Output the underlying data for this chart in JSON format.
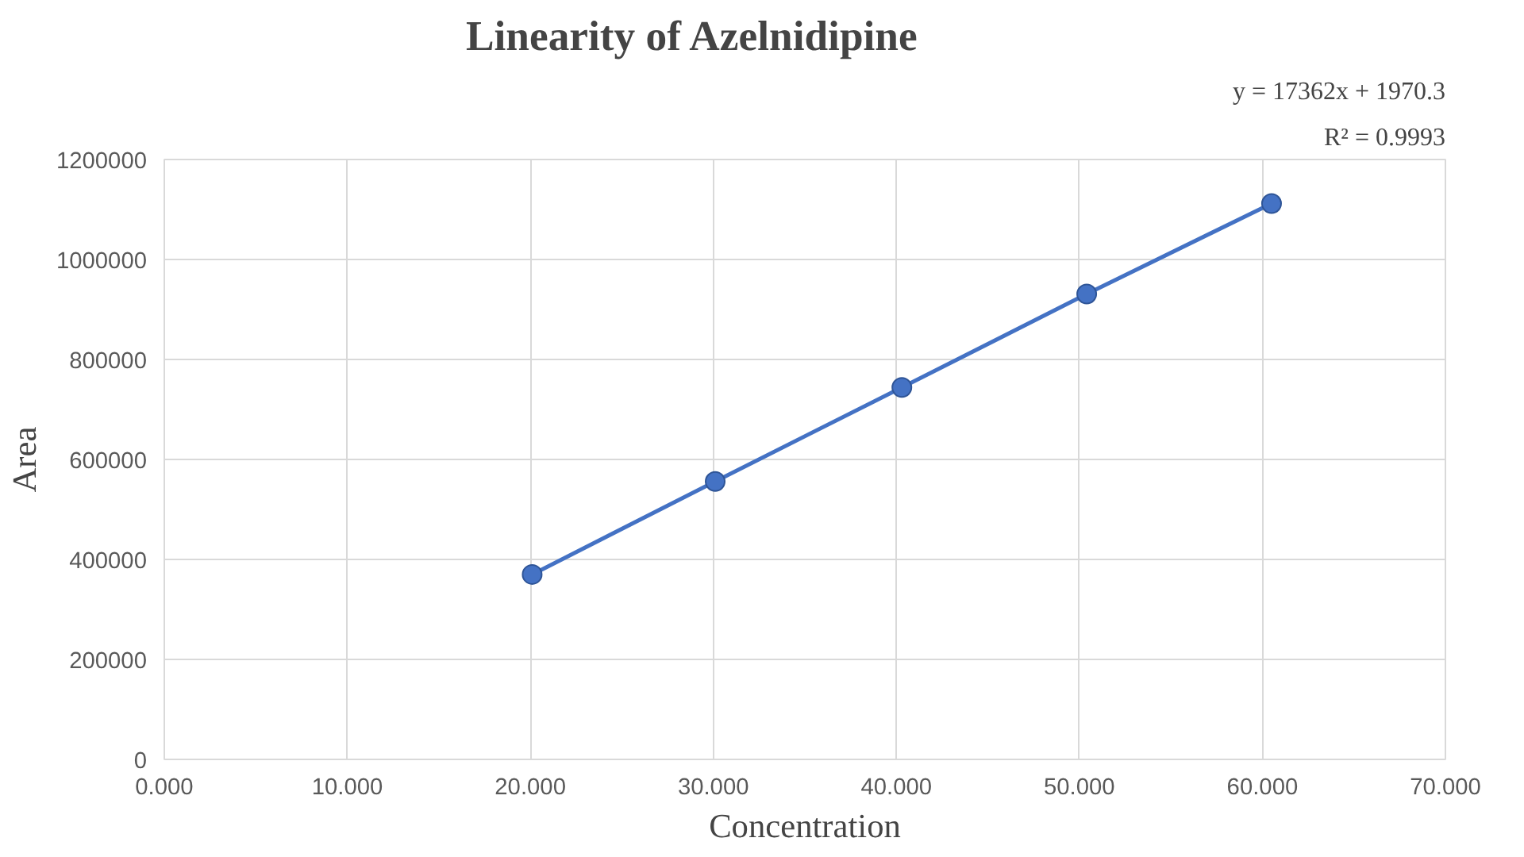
{
  "chart_data": {
    "type": "line",
    "title": "Linearity of Azelnidipine",
    "xlabel": "Concentration",
    "ylabel": "Area",
    "annotations": [
      "y = 17362x + 1970.3",
      "R² = 0.9993"
    ],
    "x": [
      20.1,
      30.1,
      40.3,
      50.4,
      60.5
    ],
    "series": [
      {
        "color": "#4472c4",
        "values": [
          370000,
          556000,
          744000,
          931000,
          1112000
        ]
      }
    ],
    "marker": "circle",
    "line_style": "solid",
    "grid": true,
    "xlim": [
      0,
      70
    ],
    "xticks": [
      {
        "value": 0,
        "label": "0.000"
      },
      {
        "value": 10,
        "label": "10.000"
      },
      {
        "value": 20,
        "label": "20.000"
      },
      {
        "value": 30,
        "label": "30.000"
      },
      {
        "value": 40,
        "label": "40.000"
      },
      {
        "value": 50,
        "label": "50.000"
      },
      {
        "value": 60,
        "label": "60.000"
      },
      {
        "value": 70,
        "label": "70.000"
      }
    ],
    "ylim": [
      0,
      1200000
    ],
    "yticks": [
      0,
      200000,
      400000,
      600000,
      800000,
      1000000,
      1200000
    ]
  }
}
